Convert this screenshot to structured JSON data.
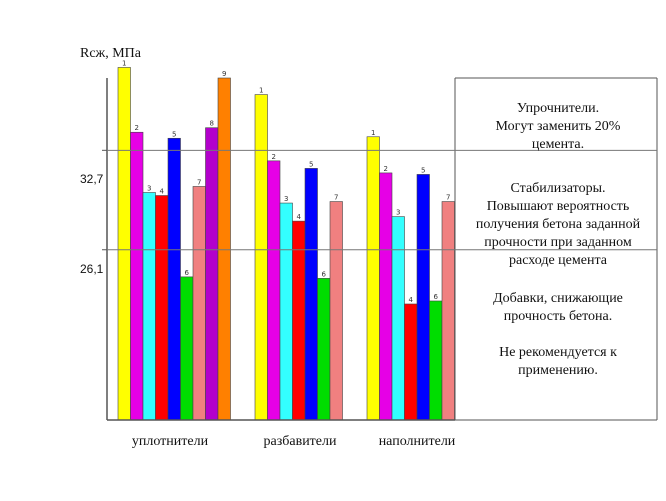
{
  "chart_data": {
    "type": "bar",
    "ylabel": "Rсж, МПа",
    "ylim": [
      14.8,
      37.5
    ],
    "yticks": [
      {
        "value": 32.7,
        "label": "32,7"
      },
      {
        "value": 26.1,
        "label": "26,1"
      }
    ],
    "grid": true,
    "groups": [
      {
        "name": "уплотнители",
        "bars": [
          {
            "label": "1",
            "value": 38.2,
            "color": "#ffff00"
          },
          {
            "label": "2",
            "value": 33.9,
            "color": "#e600e6"
          },
          {
            "label": "3",
            "value": 29.9,
            "color": "#33ffff"
          },
          {
            "label": "4",
            "value": 29.7,
            "color": "#ff0000"
          },
          {
            "label": "5",
            "value": 33.5,
            "color": "#0000ff"
          },
          {
            "label": "6",
            "value": 24.3,
            "color": "#00dd00"
          },
          {
            "label": "7",
            "value": 30.3,
            "color": "#f08080"
          },
          {
            "label": "8",
            "value": 34.2,
            "color": "#b300cc"
          },
          {
            "label": "9",
            "value": 37.5,
            "color": "#ff8000"
          }
        ]
      },
      {
        "name": "разбавители",
        "bars": [
          {
            "label": "1",
            "value": 36.4,
            "color": "#ffff00"
          },
          {
            "label": "2",
            "value": 32.0,
            "color": "#e600e6"
          },
          {
            "label": "3",
            "value": 29.2,
            "color": "#33ffff"
          },
          {
            "label": "4",
            "value": 28.0,
            "color": "#ff0000"
          },
          {
            "label": "5",
            "value": 31.5,
            "color": "#0000ff"
          },
          {
            "label": "6",
            "value": 24.2,
            "color": "#00dd00"
          },
          {
            "label": "7",
            "value": 29.3,
            "color": "#f08080"
          }
        ]
      },
      {
        "name": "наполнители",
        "bars": [
          {
            "label": "1",
            "value": 33.6,
            "color": "#ffff00"
          },
          {
            "label": "2",
            "value": 31.2,
            "color": "#e600e6"
          },
          {
            "label": "3",
            "value": 28.3,
            "color": "#33ffff"
          },
          {
            "label": "4",
            "value": 22.5,
            "color": "#ff0000"
          },
          {
            "label": "5",
            "value": 31.1,
            "color": "#0000ff"
          },
          {
            "label": "6",
            "value": 22.7,
            "color": "#00dd00"
          },
          {
            "label": "7",
            "value": 29.3,
            "color": "#f08080"
          }
        ]
      }
    ],
    "notes": {
      "top": [
        "Упрочнители.",
        "Могут заменить 20%",
        "цемента."
      ],
      "middle": [
        "Стабилизаторы.",
        "Повышают вероятность",
        "получения бетона заданной",
        "прочности при заданном",
        "расходе цемента"
      ],
      "bottom": [
        "Добавки, снижающие",
        "прочность бетона.",
        "",
        "Не рекомендуется к",
        "применению."
      ]
    }
  }
}
